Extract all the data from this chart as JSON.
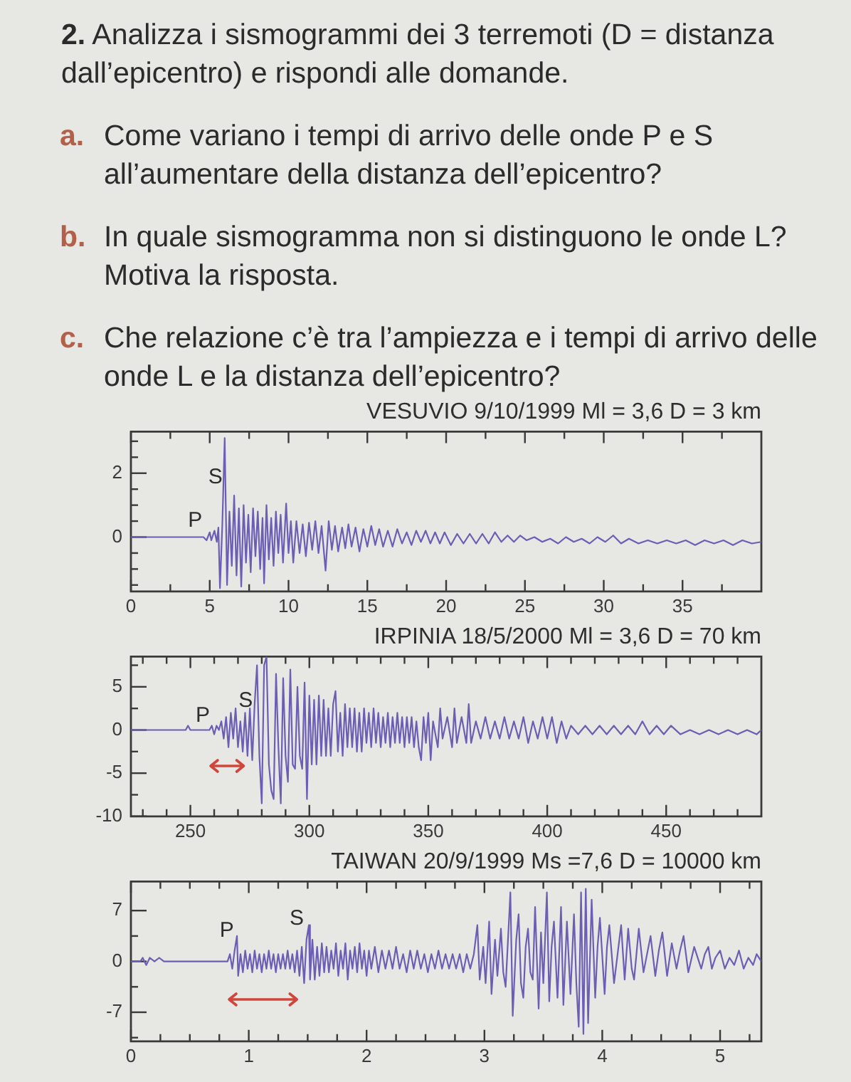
{
  "chart_data": [
    {
      "type": "other",
      "title": "2. Analizza i sismogrammi dei 3 terremoti (D = distanza dall’epicentro) e rispondi alle domande.",
      "annotations": [
        "a. Come variano i tempi di arrivo delle onde P e S all’aumentare della distanza dell’epicentro?",
        "b. In quale sismogramma non si distinguono le onde L? Motiva la risposta.",
        "c. Che relazione c’è tra l’ampiezza e i tempi di arrivo delle onde L e la distanza dell’epicentro?"
      ]
    },
    {
      "type": "line",
      "title": "VESUVIO 9/10/1999 Ml = 3,6 D = 3 km",
      "color": "#6c5db5",
      "marker": "none",
      "x": [
        0,
        4.6,
        4.8,
        5,
        5.1,
        5.3,
        5.45,
        5.55,
        5.65,
        5.8,
        5.95,
        6.1,
        6.25,
        6.4,
        6.55,
        6.7,
        6.85,
        7,
        7.15,
        7.3,
        7.45,
        7.6,
        7.75,
        7.9,
        8.05,
        8.2,
        8.35,
        8.45,
        8.6,
        8.75,
        8.9,
        9.05,
        9.2,
        9.35,
        9.5,
        9.65,
        9.85,
        10,
        10.15,
        10.3,
        10.5,
        10.7,
        10.9,
        11.1,
        11.3,
        11.5,
        11.7,
        11.9,
        12.1,
        12.35,
        12.55,
        12.75,
        12.95,
        13.15,
        13.4,
        13.6,
        13.8,
        14,
        14.25,
        14.5,
        14.75,
        15,
        15.25,
        15.5,
        15.75,
        16,
        16.3,
        16.6,
        16.9,
        17.2,
        17.5,
        17.8,
        18.1,
        18.4,
        18.7,
        19,
        19.3,
        19.6,
        19.9,
        20.3,
        20.7,
        21.1,
        21.5,
        21.9,
        22.3,
        22.7,
        23.1,
        23.5,
        23.9,
        24.3,
        24.7,
        25.1,
        25.6,
        26.1,
        26.6,
        27.1,
        27.6,
        28.1,
        28.6,
        29.1,
        29.6,
        30.1,
        30.6,
        31.1,
        31.6,
        32.2,
        32.8,
        33.4,
        34,
        34.6,
        35.2,
        35.8,
        36.4,
        37,
        37.6,
        38.2,
        38.8,
        39.4,
        40
      ],
      "values": [
        0,
        0,
        -0.1,
        0.15,
        -0.1,
        0.2,
        -0.15,
        0.3,
        -1.6,
        0.4,
        3.1,
        -1.5,
        0.8,
        -0.9,
        1.3,
        -1.2,
        0.9,
        -1.55,
        1,
        -0.8,
        0.7,
        -1.1,
        0.9,
        -0.6,
        0.8,
        -1,
        0.6,
        -1.45,
        1,
        -0.7,
        0.6,
        -0.9,
        0.8,
        -0.5,
        0.7,
        -0.8,
        1.05,
        -0.5,
        0.5,
        -0.8,
        0.5,
        -0.5,
        0.4,
        -0.6,
        0.45,
        -0.4,
        0.5,
        -0.5,
        0.35,
        -1.05,
        0.5,
        -0.4,
        0.35,
        -0.45,
        0.3,
        -0.35,
        0.4,
        -0.3,
        0.3,
        -0.45,
        0.25,
        -0.3,
        0.35,
        -0.25,
        0.25,
        -0.3,
        0.2,
        -0.3,
        0.25,
        -0.2,
        0.15,
        -0.25,
        0.2,
        -0.15,
        0.2,
        -0.2,
        0.15,
        -0.2,
        0.15,
        -0.25,
        0.1,
        -0.2,
        0.1,
        -0.2,
        0.1,
        -0.2,
        0.15,
        -0.15,
        0.05,
        -0.15,
        0.05,
        -0.1,
        0,
        -0.15,
        -0.05,
        -0.2,
        0,
        -0.15,
        -0.05,
        -0.2,
        0,
        -0.15,
        0.05,
        -0.2,
        -0.05,
        -0.2,
        -0.1,
        -0.2,
        -0.1,
        -0.2,
        -0.1,
        -0.25,
        -0.1,
        -0.2,
        -0.1,
        -0.25,
        -0.1,
        -0.2,
        -0.15
      ],
      "xlim": [
        0,
        40
      ],
      "xticks": [
        0,
        {
          "value": 2.5,
          "label": null
        },
        5,
        {
          "value": 7.5,
          "label": null
        },
        10,
        {
          "value": 12.5,
          "label": null
        },
        15,
        {
          "value": 17.5,
          "label": null
        },
        20,
        {
          "value": 22.5,
          "label": null
        },
        25,
        {
          "value": 27.5,
          "label": null
        },
        30,
        {
          "value": 32.5,
          "label": null
        },
        35,
        {
          "value": 37.5,
          "label": null
        }
      ],
      "ylim": [
        -1.7,
        3.3
      ],
      "yticks": [
        {
          "value": -1.5,
          "label": null
        },
        {
          "value": -1,
          "label": null
        },
        {
          "value": -0.5,
          "label": null
        },
        0,
        {
          "value": 0.5,
          "label": null
        },
        {
          "value": 1,
          "label": null
        },
        {
          "value": 1.5,
          "label": null
        },
        2,
        {
          "value": 2.5,
          "label": null
        },
        {
          "value": 3,
          "label": null
        }
      ],
      "annotations": [
        "P",
        "S"
      ]
    },
    {
      "type": "line",
      "title": "IRPINIA 18/5/2000 Ml = 3,6 D = 70 km",
      "color": "#6c5db5",
      "marker": "none",
      "x": [
        225,
        248,
        249,
        250,
        258,
        259,
        260,
        261,
        262,
        263,
        264,
        265,
        266,
        267,
        268,
        269,
        270,
        271,
        272,
        273,
        274,
        275,
        276,
        277,
        278,
        279,
        280,
        281,
        282,
        283,
        284,
        285,
        286,
        287,
        288,
        289,
        290,
        291,
        292,
        293,
        294,
        295,
        296,
        297,
        298,
        299,
        300,
        301,
        302,
        303,
        304,
        305,
        306,
        307,
        308,
        309,
        310,
        311,
        312,
        313,
        314,
        315,
        316,
        317,
        318,
        319,
        320,
        321,
        322,
        323,
        324,
        325,
        326,
        327,
        328,
        329,
        330,
        331,
        332,
        333,
        334,
        335,
        336,
        337,
        338,
        339,
        340,
        341,
        342,
        343,
        344,
        345,
        346,
        347,
        348,
        349,
        350,
        351,
        352,
        354,
        355,
        356,
        358,
        360,
        361,
        362,
        364,
        366,
        367,
        368,
        370,
        372,
        374,
        376,
        378,
        380,
        382,
        384,
        386,
        388,
        390,
        392,
        394,
        396,
        398,
        400,
        402,
        404,
        406,
        408,
        410,
        413,
        416,
        419,
        422,
        425,
        428,
        431,
        434,
        437,
        440,
        443,
        446,
        449,
        452,
        456,
        460,
        464,
        468,
        472,
        476,
        480,
        484,
        488,
        490
      ],
      "values": [
        0,
        0,
        0.5,
        0,
        0,
        0.5,
        -0.5,
        0.5,
        0,
        1,
        -1,
        1.5,
        -2,
        2,
        -1,
        2.5,
        -2,
        1,
        -2.5,
        2,
        -3,
        2.5,
        -3.5,
        3,
        7.5,
        -3,
        -8.5,
        7.5,
        8.5,
        -4,
        -7,
        -8,
        6.5,
        -2,
        -8.5,
        6,
        -3,
        -6,
        7,
        -4,
        -4.5,
        5,
        -3,
        -4.5,
        5.5,
        -8,
        4,
        -4,
        3.5,
        -4,
        4,
        -3,
        3.5,
        -3,
        2.5,
        -3,
        3,
        4.5,
        -2.5,
        2,
        -3,
        3,
        -2,
        2.5,
        -2,
        2.5,
        -2.5,
        2,
        -2.5,
        2.5,
        -1.5,
        2,
        -2,
        2.5,
        -1.5,
        2,
        -2,
        1.5,
        -1.5,
        2,
        -2,
        1.5,
        -1.5,
        2,
        -1.5,
        1.5,
        -2,
        1.5,
        -1.5,
        1.5,
        -2,
        1,
        -2,
        -3.5,
        1.5,
        -1.5,
        2,
        -3.5,
        1,
        -2,
        2.5,
        -1,
        1.5,
        -2,
        2.5,
        -1.5,
        1.5,
        -1.5,
        3,
        -1.5,
        1,
        -1,
        1.5,
        -1,
        1,
        -1,
        1.5,
        -1,
        1,
        -1,
        1.5,
        -1.5,
        1,
        -1,
        1.5,
        -1,
        1.5,
        -1.5,
        1,
        -1,
        0.5,
        -0.5,
        0.5,
        -0.5,
        0.5,
        -0.5,
        0.5,
        -0.5,
        0.5,
        -0.5,
        1,
        -0.5,
        0.5,
        -0.5,
        0.5,
        -0.5,
        0,
        -0.5,
        0,
        -0.5,
        0,
        -0.5,
        0,
        -0.5,
        0
      ],
      "xlim": [
        225,
        490
      ],
      "xticks": [
        {
          "value": 230,
          "label": null
        },
        {
          "value": 240,
          "label": null
        },
        250,
        {
          "value": 260,
          "label": null
        },
        {
          "value": 270,
          "label": null
        },
        {
          "value": 280,
          "label": null
        },
        {
          "value": 290,
          "label": null
        },
        300,
        {
          "value": 310,
          "label": null
        },
        {
          "value": 320,
          "label": null
        },
        {
          "value": 330,
          "label": null
        },
        {
          "value": 340,
          "label": null
        },
        350,
        {
          "value": 360,
          "label": null
        },
        {
          "value": 370,
          "label": null
        },
        {
          "value": 380,
          "label": null
        },
        {
          "value": 390,
          "label": null
        },
        400,
        {
          "value": 410,
          "label": null
        },
        {
          "value": 420,
          "label": null
        },
        {
          "value": 430,
          "label": null
        },
        {
          "value": 440,
          "label": null
        },
        450,
        {
          "value": 460,
          "label": null
        },
        {
          "value": 470,
          "label": null
        },
        {
          "value": 480,
          "label": null
        }
      ],
      "ylim": [
        -10,
        8.5
      ],
      "yticks": [
        -10,
        {
          "value": -7.5,
          "label": null
        },
        -5,
        {
          "value": -2.5,
          "label": null
        },
        0,
        {
          "value": 2.5,
          "label": null
        },
        5,
        {
          "value": 7.5,
          "label": null
        }
      ],
      "annotations": [
        "P",
        "S"
      ]
    },
    {
      "type": "line",
      "title": "TAIWAN 20/9/1999 Ms =7,6 D = 10000 km",
      "color": "#6c5db5",
      "marker": "none",
      "x": [
        0,
        0.08,
        0.1,
        0.13,
        0.16,
        0.2,
        0.24,
        0.28,
        0.82,
        0.84,
        0.86,
        0.88,
        0.9,
        0.91,
        0.93,
        0.95,
        0.97,
        0.99,
        1.01,
        1.03,
        1.05,
        1.07,
        1.09,
        1.11,
        1.13,
        1.15,
        1.17,
        1.19,
        1.21,
        1.23,
        1.25,
        1.27,
        1.29,
        1.31,
        1.33,
        1.35,
        1.37,
        1.39,
        1.41,
        1.43,
        1.45,
        1.47,
        1.49,
        1.51,
        1.52,
        1.54,
        1.56,
        1.58,
        1.6,
        1.62,
        1.64,
        1.66,
        1.68,
        1.7,
        1.72,
        1.74,
        1.76,
        1.78,
        1.8,
        1.82,
        1.84,
        1.86,
        1.88,
        1.9,
        1.92,
        1.94,
        1.96,
        1.98,
        2,
        2.02,
        2.04,
        2.07,
        2.1,
        2.13,
        2.16,
        2.19,
        2.22,
        2.25,
        2.28,
        2.31,
        2.34,
        2.37,
        2.4,
        2.43,
        2.46,
        2.49,
        2.52,
        2.55,
        2.58,
        2.61,
        2.64,
        2.67,
        2.7,
        2.73,
        2.76,
        2.79,
        2.82,
        2.85,
        2.88,
        2.91,
        2.94,
        2.96,
        2.99,
        3.01,
        3.04,
        3.06,
        3.09,
        3.11,
        3.14,
        3.16,
        3.18,
        3.2,
        3.22,
        3.24,
        3.27,
        3.29,
        3.31,
        3.33,
        3.35,
        3.37,
        3.39,
        3.41,
        3.43,
        3.46,
        3.48,
        3.5,
        3.53,
        3.55,
        3.57,
        3.59,
        3.62,
        3.65,
        3.67,
        3.7,
        3.73,
        3.76,
        3.78,
        3.8,
        3.82,
        3.84,
        3.86,
        3.88,
        3.91,
        3.94,
        3.96,
        3.98,
        4.02,
        4.04,
        4.06,
        4.1,
        4.13,
        4.16,
        4.19,
        4.22,
        4.25,
        4.27,
        4.31,
        4.35,
        4.38,
        4.41,
        4.45,
        4.48,
        4.51,
        4.55,
        4.59,
        4.63,
        4.66,
        4.69,
        4.73,
        4.78,
        4.84,
        4.87,
        4.9,
        4.93,
        4.96,
        5,
        5.04,
        5.08,
        5.12,
        5.16,
        5.2,
        5.24,
        5.28,
        5.31,
        5.35
      ],
      "values": [
        0,
        0,
        0.5,
        -0.5,
        0.5,
        0,
        0.5,
        0,
        0,
        1,
        -1,
        1.5,
        3.5,
        -2,
        1,
        -1.5,
        1.5,
        -1,
        1,
        -1.5,
        1.5,
        -1,
        1,
        -1.5,
        1,
        -1,
        1.5,
        -1,
        1,
        -1.5,
        1,
        -1,
        1,
        -1,
        1.5,
        -1,
        1,
        -1.5,
        1.5,
        -2,
        2,
        -3,
        3,
        5,
        -2.5,
        3,
        -2.5,
        2,
        -2,
        2.5,
        -1.5,
        2,
        -1.5,
        1.5,
        -1,
        2.5,
        -2,
        1.5,
        -1,
        2.5,
        -2.5,
        1.5,
        -1,
        2,
        -1.5,
        2.5,
        -1,
        1.5,
        -2,
        1.5,
        -1,
        2,
        -1.5,
        1.5,
        -1,
        1.5,
        -1,
        2,
        -1,
        1,
        -1.5,
        1.5,
        -1,
        1.5,
        -1,
        1,
        -1.5,
        1,
        -1,
        1.5,
        -1,
        1,
        -1,
        1,
        -1,
        1,
        -1.5,
        1,
        -1,
        1,
        5,
        -2.5,
        2,
        -3,
        5.5,
        -4.5,
        3,
        -2,
        4.5,
        -1.5,
        -3.5,
        3,
        9.5,
        -7.5,
        3,
        6.5,
        -3,
        -5,
        2,
        4.5,
        -1.5,
        -2.5,
        7.5,
        -6.5,
        4,
        -3,
        9.5,
        -5.5,
        2,
        5.5,
        -5,
        7.5,
        -6,
        5.5,
        -4.5,
        6.5,
        -3,
        -9,
        9.5,
        -10,
        10,
        -8.5,
        8.5,
        -5,
        2,
        6,
        -4.5,
        2,
        5,
        -3,
        1,
        5,
        -2.5,
        4.5,
        -1,
        -2.5,
        4.5,
        -1.5,
        1,
        3.5,
        -2,
        1.5,
        4,
        -2,
        2.5,
        -1,
        1.5,
        3.5,
        -1.5,
        2,
        -1,
        1,
        2,
        -1,
        0.5,
        1.5,
        -1,
        0.5,
        -0.5,
        1.5,
        -1,
        0.5,
        -0.5,
        1,
        0
      ],
      "xlim": [
        0,
        5.35
      ],
      "xticks": [
        0,
        {
          "value": 0.25,
          "label": null
        },
        {
          "value": 0.5,
          "label": null
        },
        {
          "value": 0.75,
          "label": null
        },
        1,
        {
          "value": 1.25,
          "label": null
        },
        {
          "value": 1.5,
          "label": null
        },
        {
          "value": 1.75,
          "label": null
        },
        2,
        {
          "value": 2.25,
          "label": null
        },
        {
          "value": 2.5,
          "label": null
        },
        {
          "value": 2.75,
          "label": null
        },
        3,
        {
          "value": 3.25,
          "label": null
        },
        {
          "value": 3.5,
          "label": null
        },
        {
          "value": 3.75,
          "label": null
        },
        4,
        {
          "value": 4.25,
          "label": null
        },
        {
          "value": 4.5,
          "label": null
        },
        {
          "value": 4.75,
          "label": null
        },
        5,
        {
          "value": 5.25,
          "label": null
        }
      ],
      "ylim": [
        -11,
        11
      ],
      "yticks": [
        {
          "value": -10.5,
          "label": null
        },
        -7,
        {
          "value": -3.5,
          "label": null
        },
        0,
        {
          "value": 3.5,
          "label": null
        },
        7
      ],
      "annotations": [
        "P",
        "S"
      ]
    }
  ]
}
